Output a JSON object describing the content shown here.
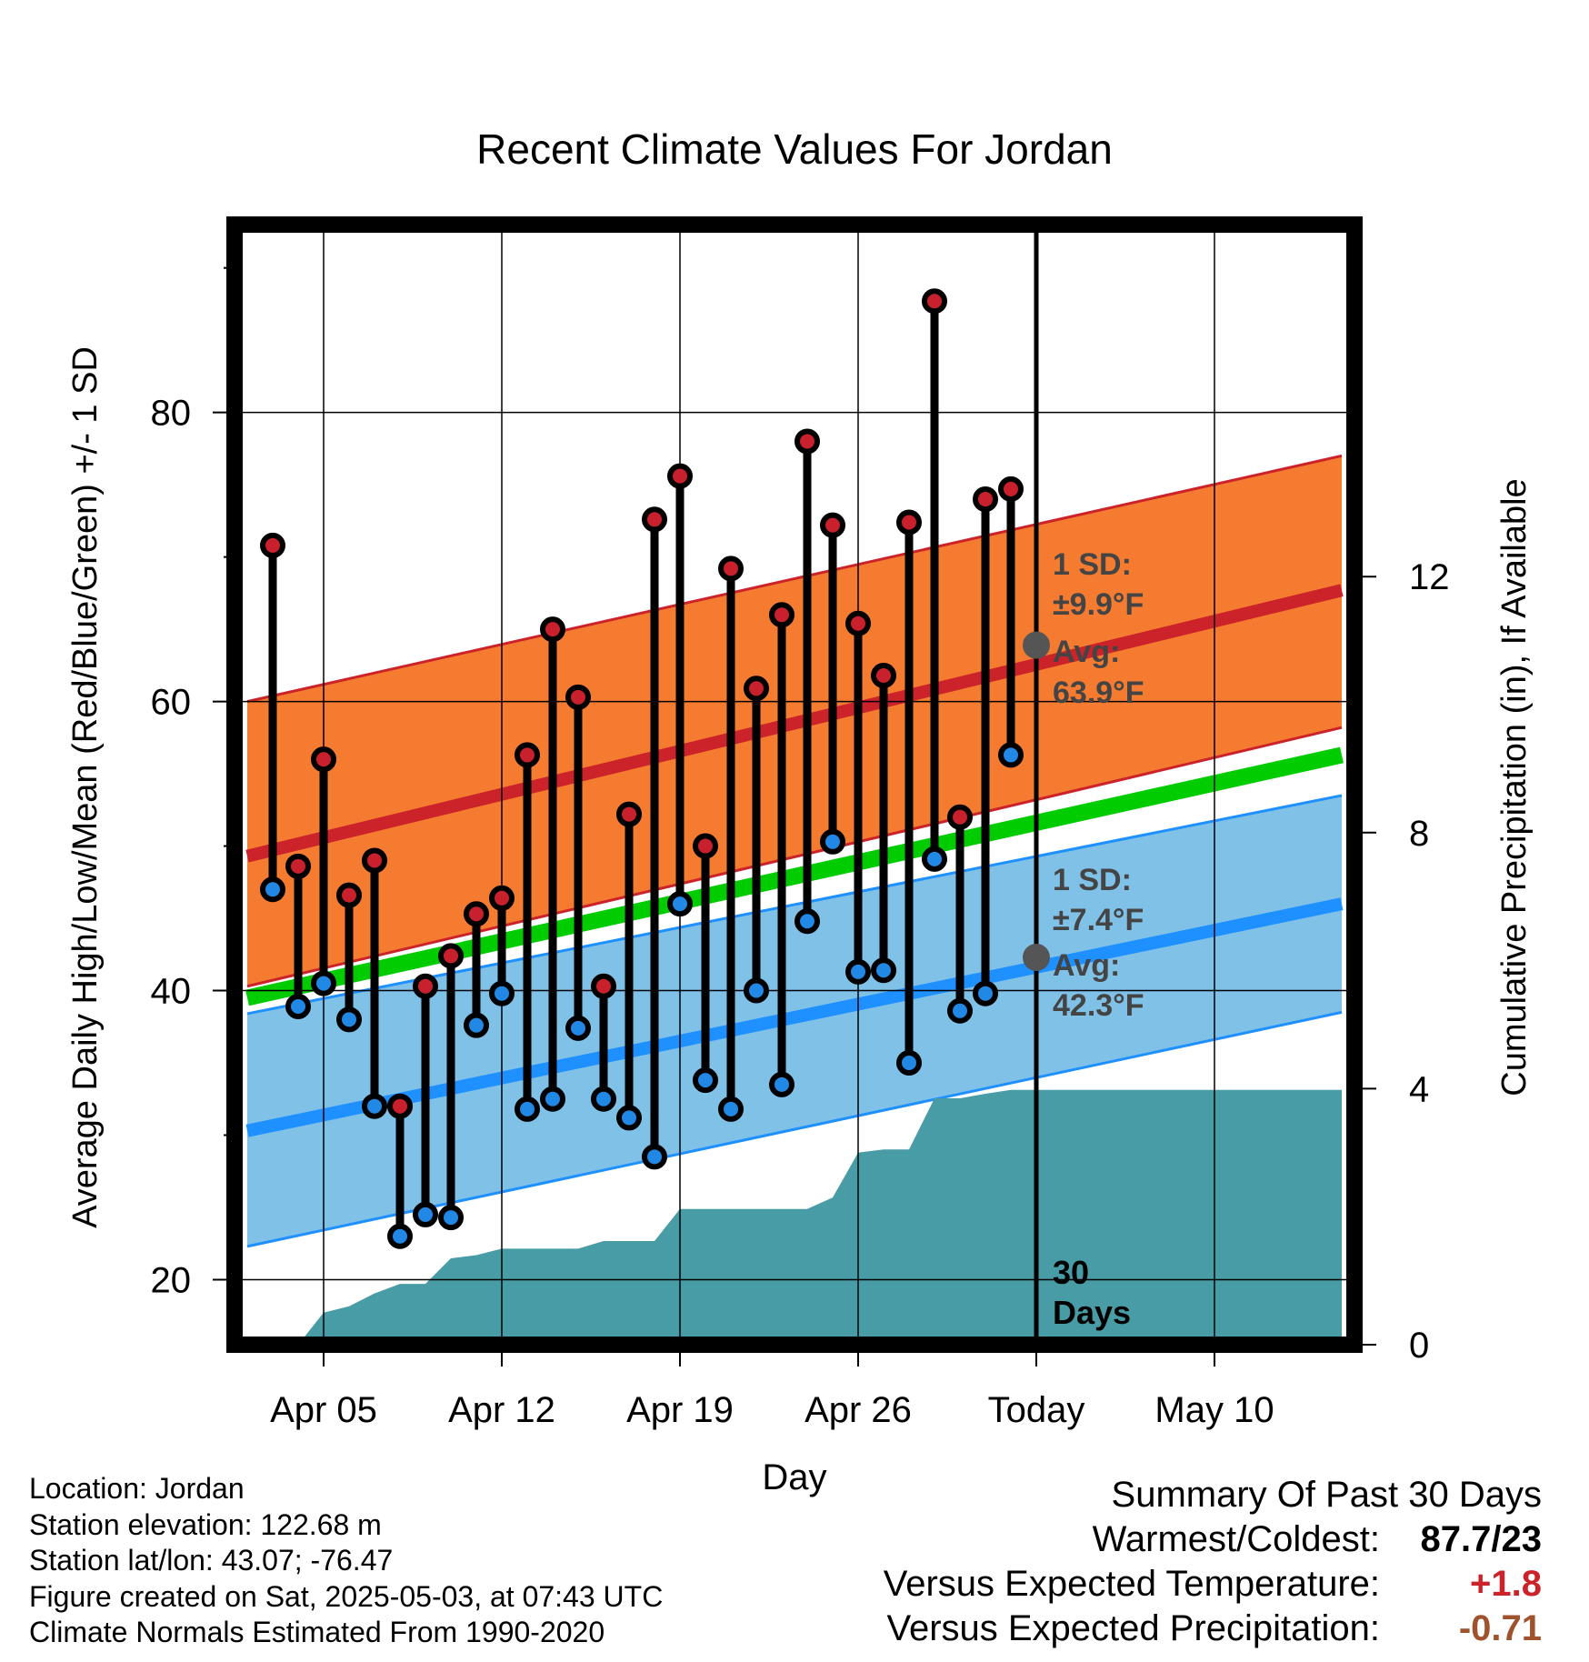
{
  "chart_data": {
    "type": "line",
    "title": "Recent Climate Values For Jordan",
    "xlabel": "Day",
    "ylabel": "Average Daily High/Low/Mean (Red/Blue/Green) +/- 1 SD",
    "y2label": "Cumulative Precipitation (in), If Available",
    "ylim": [
      15.5,
      93
    ],
    "y2lim": [
      0,
      17.5
    ],
    "x_range": [
      -3.5,
      40.5
    ],
    "x_ticks": [
      {
        "x": 0,
        "label": "Apr 05"
      },
      {
        "x": 7,
        "label": "Apr 12"
      },
      {
        "x": 14,
        "label": "Apr 19"
      },
      {
        "x": 21,
        "label": "Apr 26"
      },
      {
        "x": 28,
        "label": "Today"
      },
      {
        "x": 35,
        "label": "May 10"
      }
    ],
    "y_ticks": [
      20,
      40,
      60,
      80
    ],
    "y_minor_ticks": [
      30,
      50,
      70,
      90
    ],
    "y2_ticks": [
      0,
      4,
      8,
      12
    ],
    "grid": true,
    "today_x": 28,
    "normals": {
      "high_mean": {
        "x": [
          -3,
          40
        ],
        "y": [
          49.3,
          67.7
        ]
      },
      "high_sd_upper": {
        "x": [
          -3,
          40
        ],
        "y": [
          60.0,
          77.0
        ]
      },
      "high_sd_lower": {
        "x": [
          -3,
          40
        ],
        "y": [
          40.3,
          58.2
        ]
      },
      "mean": {
        "x": [
          -3,
          40
        ],
        "y": [
          39.5,
          56.3
        ]
      },
      "low_mean": {
        "x": [
          -3,
          40
        ],
        "y": [
          30.3,
          46.0
        ]
      },
      "low_sd_upper": {
        "x": [
          -3,
          40
        ],
        "y": [
          38.4,
          53.5
        ]
      },
      "low_sd_lower": {
        "x": [
          -3,
          40
        ],
        "y": [
          22.3,
          38.5
        ]
      }
    },
    "series": [
      {
        "name": "High",
        "color": "#c8202c",
        "x": [
          -2,
          -1,
          0,
          1,
          2,
          3,
          4,
          5,
          6,
          7,
          8,
          9,
          10,
          11,
          12,
          13,
          14,
          15,
          16,
          17,
          18,
          19,
          20,
          21,
          22,
          23,
          24,
          25,
          26,
          27
        ],
        "values": [
          70.8,
          48.6,
          56.0,
          46.6,
          49.0,
          32.0,
          40.3,
          42.4,
          45.3,
          46.4,
          56.3,
          65.0,
          60.3,
          40.3,
          52.2,
          72.6,
          75.6,
          50.0,
          69.2,
          60.9,
          66.0,
          78.0,
          72.2,
          65.4,
          61.8,
          72.4,
          87.7,
          52.0,
          74.0,
          74.7
        ]
      },
      {
        "name": "Low",
        "color": "#2288e6",
        "x": [
          -2,
          -1,
          0,
          1,
          2,
          3,
          4,
          5,
          6,
          7,
          8,
          9,
          10,
          11,
          12,
          13,
          14,
          15,
          16,
          17,
          18,
          19,
          20,
          21,
          22,
          23,
          24,
          25,
          26,
          27
        ],
        "values": [
          47.0,
          38.9,
          40.5,
          38.0,
          32.0,
          23.0,
          24.5,
          24.3,
          37.6,
          39.8,
          31.8,
          32.5,
          37.4,
          32.5,
          31.2,
          28.5,
          46.0,
          33.8,
          31.8,
          40.0,
          33.5,
          44.8,
          50.3,
          41.3,
          41.4,
          35.0,
          49.1,
          38.6,
          39.8,
          56.3
        ]
      }
    ],
    "precipitation": {
      "x": [
        -3,
        -2,
        -1,
        0,
        1,
        2,
        3,
        4,
        5,
        6,
        7,
        8,
        9,
        10,
        11,
        12,
        13,
        14,
        15,
        16,
        17,
        18,
        19,
        20,
        21,
        22,
        23,
        24,
        25,
        26,
        27,
        28,
        29,
        30,
        31,
        32,
        33,
        34,
        35,
        36,
        37,
        38,
        39,
        40
      ],
      "values": [
        0,
        0,
        0,
        0.5,
        0.6,
        0.8,
        0.95,
        0.95,
        1.35,
        1.4,
        1.5,
        1.5,
        1.5,
        1.5,
        1.62,
        1.62,
        1.62,
        2.12,
        2.12,
        2.12,
        2.12,
        2.12,
        2.12,
        2.3,
        3.0,
        3.05,
        3.05,
        3.85,
        3.85,
        3.92,
        3.98,
        3.98,
        3.98,
        3.98,
        3.98,
        3.98,
        3.98,
        3.98,
        3.98,
        3.98,
        3.98,
        3.98,
        3.98,
        3.98
      ]
    },
    "annotations": {
      "high_sd_label": "1 SD:",
      "high_sd_value": "±9.9°F",
      "high_avg_label": "Avg:",
      "high_avg_value": "63.9°F",
      "high_avg_point": 63.9,
      "low_sd_label": "1 SD:",
      "low_sd_value": "±7.4°F",
      "low_avg_label": "Avg:",
      "low_avg_value": "42.3°F",
      "low_avg_point": 42.3,
      "days_label_1": "30",
      "days_label_2": "Days"
    },
    "colors": {
      "high_band": "#f47b30",
      "high_line": "#cc2229",
      "mean_line": "#00cc00",
      "low_band": "#80c1e8",
      "low_line": "#1e90ff",
      "precip_fill": "#489ca6",
      "avg_marker": "#555555"
    }
  },
  "footer": {
    "location": "Location: Jordan",
    "elevation": "Station elevation: 122.68 m",
    "latlon": "Station lat/lon: 43.07; -76.47",
    "created": "Figure created on Sat, 2025-05-03, at 07:43 UTC",
    "normals": "Climate Normals Estimated From 1990-2020"
  },
  "summary": {
    "title": "Summary Of Past 30 Days",
    "warmest_label": "Warmest/Coldest:",
    "warmest_value": "87.7/23",
    "temp_label": "Versus Expected Temperature:",
    "temp_value": "+1.8",
    "temp_color": "#cc2229",
    "precip_label": "Versus Expected Precipitation:",
    "precip_value": "-0.71",
    "precip_color": "#a0522d"
  }
}
